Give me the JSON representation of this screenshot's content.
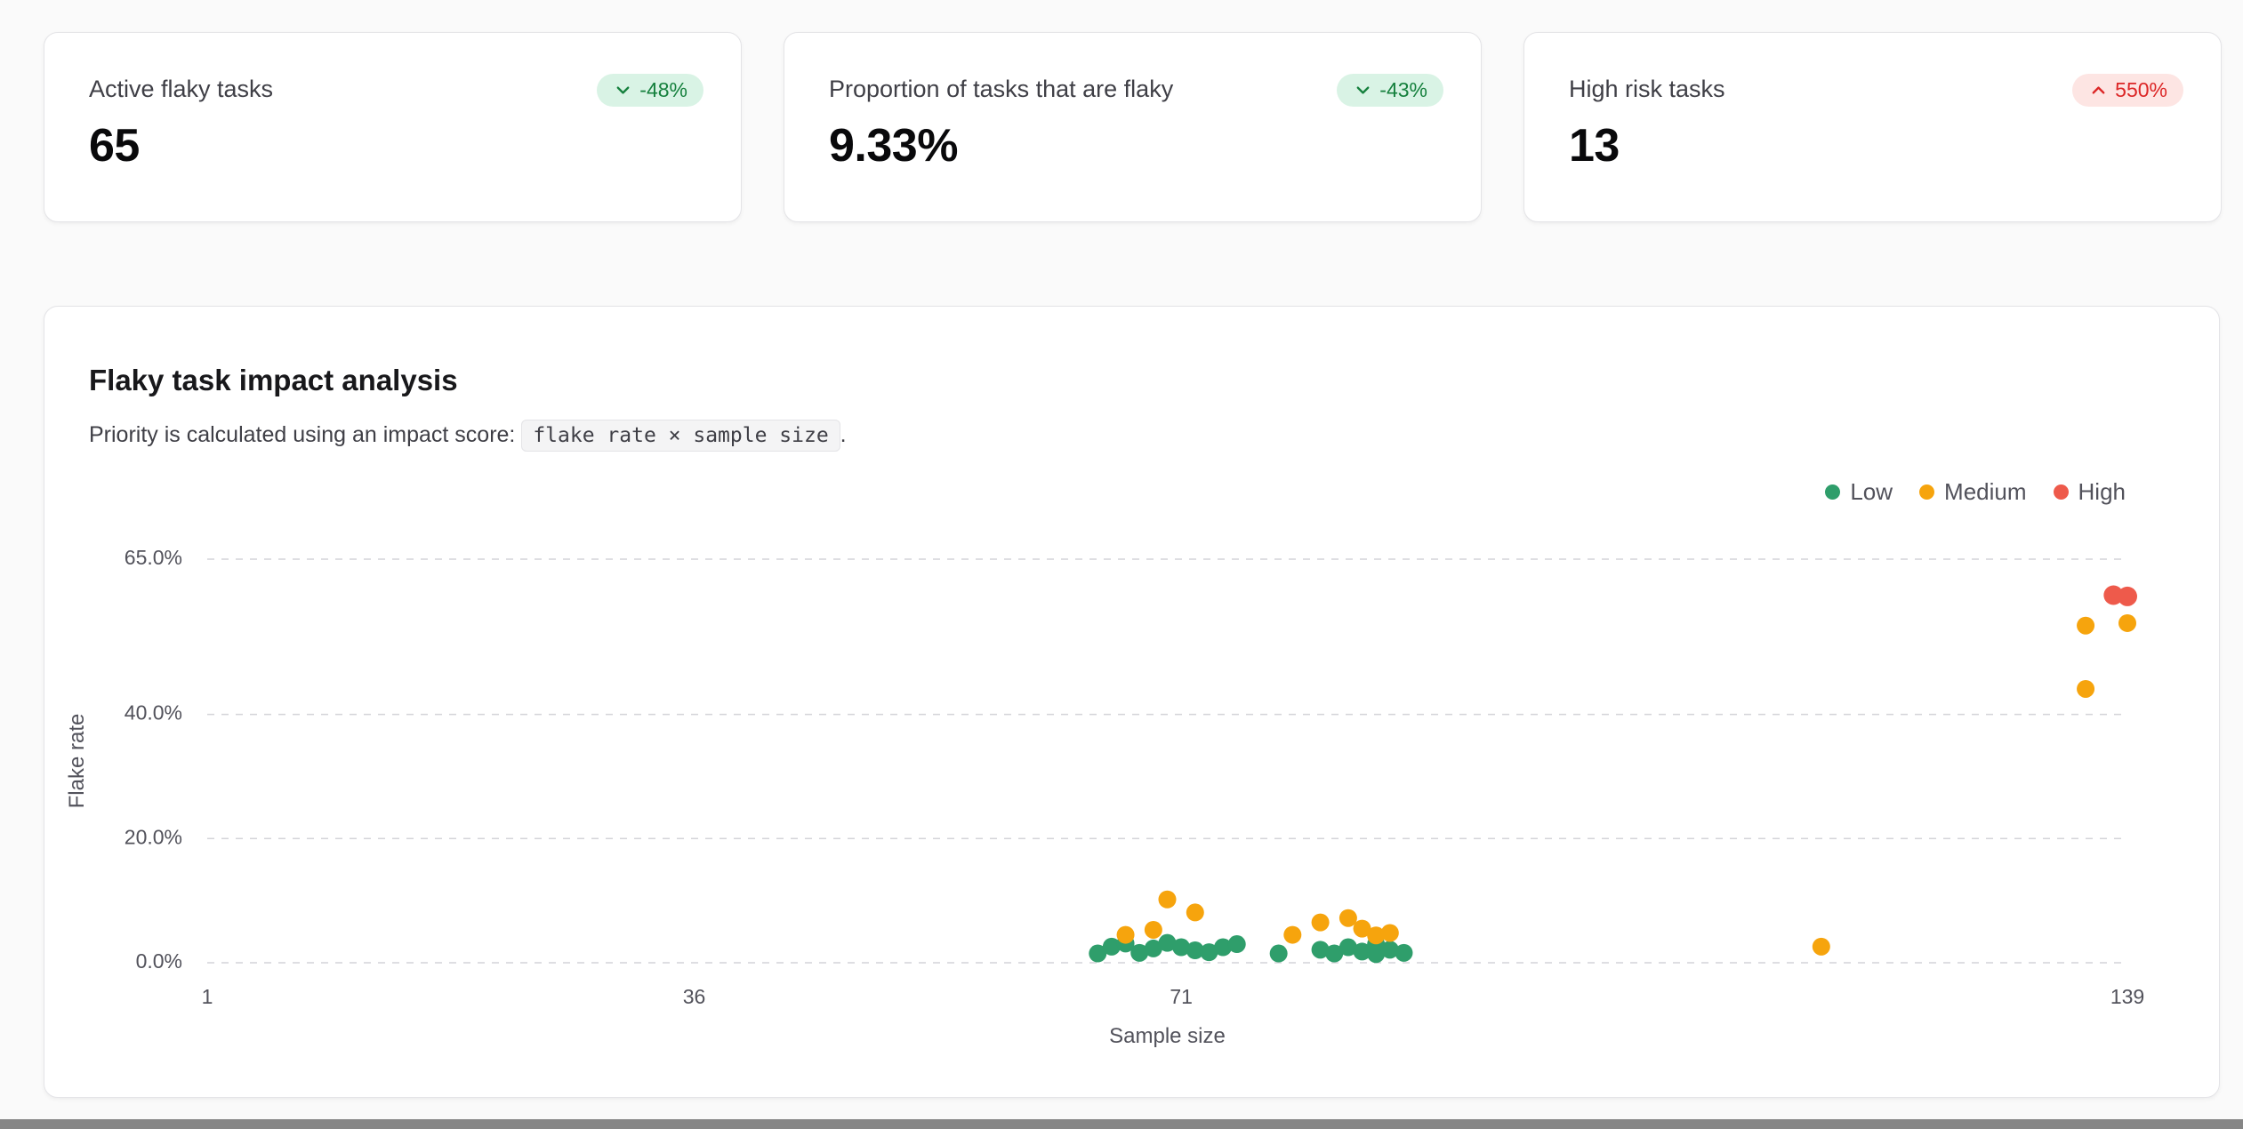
{
  "stat_cards": [
    {
      "label": "Active flaky tasks",
      "value": "65",
      "badge": {
        "text": "-48%",
        "direction": "down",
        "tone": "positive"
      }
    },
    {
      "label": "Proportion of tasks that are flaky",
      "value": "9.33%",
      "badge": {
        "text": "-43%",
        "direction": "down",
        "tone": "positive"
      }
    },
    {
      "label": "High risk tasks",
      "value": "13",
      "badge": {
        "text": "550%",
        "direction": "up",
        "tone": "negative"
      }
    }
  ],
  "colors": {
    "positive_badge_bg": "#d9f3e5",
    "positive_badge_text": "#15803d",
    "negative_badge_bg": "#fde5e3",
    "negative_badge_text": "#dc2626"
  },
  "impact_card": {
    "title": "Flaky task impact analysis",
    "subtitle_prefix": "Priority is calculated using an impact score:",
    "subtitle_code": "flake rate × sample size",
    "subtitle_suffix": "."
  },
  "chart_data": {
    "type": "scatter",
    "title": "Flaky task impact analysis",
    "xlabel": "Sample size",
    "ylabel": "Flake rate",
    "xlim": [
      1,
      139
    ],
    "ylim": [
      0,
      65
    ],
    "x_ticks": [
      1,
      36,
      71,
      139
    ],
    "y_ticks": [
      0,
      20,
      40,
      65
    ],
    "y_tick_labels": [
      "0.0%",
      "20.0%",
      "40.0%",
      "65.0%"
    ],
    "grid": "horizontal-dashed",
    "legend_position": "top-right",
    "series": [
      {
        "name": "Low",
        "color": "#2f9e6b",
        "points": [
          [
            65,
            1.5
          ],
          [
            66,
            2.6
          ],
          [
            67,
            3.1
          ],
          [
            68,
            1.6
          ],
          [
            69,
            2.3
          ],
          [
            70,
            3.2
          ],
          [
            71,
            2.5
          ],
          [
            72,
            2.0
          ],
          [
            73,
            1.7
          ],
          [
            74,
            2.5
          ],
          [
            75,
            3.0
          ],
          [
            78,
            1.5
          ],
          [
            81,
            2.1
          ],
          [
            82,
            1.5
          ],
          [
            83,
            2.5
          ],
          [
            84,
            1.8
          ],
          [
            85,
            3.0
          ],
          [
            85,
            1.4
          ],
          [
            86,
            2.1
          ],
          [
            87,
            1.6
          ]
        ]
      },
      {
        "name": "Medium",
        "color": "#f6a40d",
        "points": [
          [
            67,
            4.5
          ],
          [
            69,
            5.3
          ],
          [
            70,
            10.2
          ],
          [
            72,
            8.1
          ],
          [
            79,
            4.5
          ],
          [
            81,
            6.5
          ],
          [
            83,
            7.2
          ],
          [
            84,
            5.5
          ],
          [
            85,
            4.4
          ],
          [
            86,
            4.8
          ],
          [
            117,
            2.6
          ],
          [
            136,
            44.1
          ],
          [
            136,
            54.3
          ],
          [
            139,
            54.7
          ]
        ]
      },
      {
        "name": "High",
        "color": "#ee5a4b",
        "points": [
          [
            138,
            59.2
          ],
          [
            139,
            59.0
          ]
        ]
      }
    ]
  },
  "bottom_strip_color": "#868686"
}
